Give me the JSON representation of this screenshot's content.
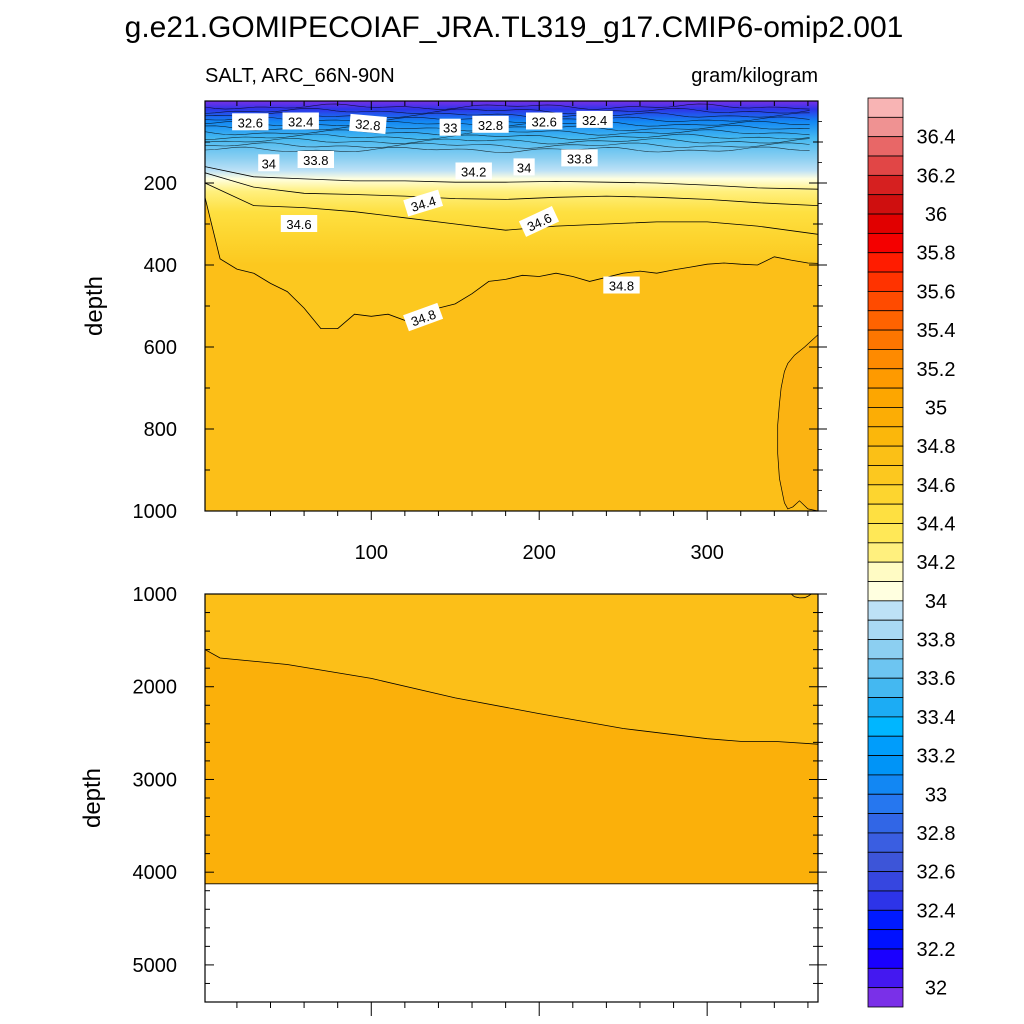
{
  "figure": {
    "title": "g.e21.GOMIPECOIAF_JRA.TL319_g17.CMIP6-omip2.001",
    "left_subtitle": "SALT, ARC_66N-90N",
    "right_subtitle": "gram/kilogram"
  },
  "chart_data": [
    {
      "type": "heatmap",
      "name": "upper-panel",
      "variable": "SALT",
      "region": "ARC_66N-90N",
      "units": "gram/kilogram",
      "ylabel": "depth",
      "xlabel": "",
      "xlim": [
        1,
        366
      ],
      "ylim": [
        0,
        1000
      ],
      "y_reversed": true,
      "xticks": [
        100,
        200,
        300
      ],
      "yticks": [
        200,
        400,
        600,
        800,
        1000
      ],
      "grid": false,
      "bands": [
        32,
        32.2,
        32.4,
        32.6,
        32.8,
        33,
        33.2,
        33.4,
        33.6,
        33.8,
        34,
        34.2,
        34.4,
        34.6,
        34.8
      ],
      "contour_labels": [
        {
          "label": "32.6",
          "x": 28,
          "depth": 52,
          "angle": 0
        },
        {
          "label": "32.4",
          "x": 58,
          "depth": 50,
          "angle": 0
        },
        {
          "label": "32.8",
          "x": 98,
          "depth": 57,
          "angle": 5
        },
        {
          "label": "33",
          "x": 147,
          "depth": 65,
          "angle": 0
        },
        {
          "label": "32.8",
          "x": 171,
          "depth": 58,
          "angle": 0
        },
        {
          "label": "32.6",
          "x": 203,
          "depth": 50,
          "angle": 0
        },
        {
          "label": "32.4",
          "x": 233,
          "depth": 46,
          "angle": 0
        },
        {
          "label": "34",
          "x": 39,
          "depth": 152,
          "angle": 0
        },
        {
          "label": "33.8",
          "x": 67,
          "depth": 144,
          "angle": 0
        },
        {
          "label": "34.2",
          "x": 161,
          "depth": 172,
          "angle": 0
        },
        {
          "label": "34",
          "x": 191,
          "depth": 162,
          "angle": 0
        },
        {
          "label": "33.8",
          "x": 224,
          "depth": 140,
          "angle": 0
        },
        {
          "label": "34.4",
          "x": 131,
          "depth": 250,
          "angle": -17
        },
        {
          "label": "34.6",
          "x": 57,
          "depth": 300,
          "angle": 0
        },
        {
          "label": "34.6",
          "x": 200,
          "depth": 295,
          "angle": -25
        },
        {
          "label": "34.8",
          "x": 131,
          "depth": 528,
          "angle": -20
        },
        {
          "label": "34.8",
          "x": 249,
          "depth": 450,
          "angle": 0
        }
      ],
      "isolines": {
        "34.8": {
          "x": [
            1,
            10,
            20,
            30,
            40,
            50,
            60,
            70,
            80,
            90,
            100,
            110,
            120,
            130,
            140,
            150,
            160,
            170,
            180,
            190,
            200,
            210,
            220,
            230,
            240,
            250,
            260,
            270,
            280,
            290,
            300,
            310,
            320,
            330,
            340,
            350,
            360,
            366
          ],
          "depth": [
            235,
            385,
            410,
            420,
            445,
            465,
            505,
            555,
            555,
            520,
            525,
            520,
            535,
            520,
            505,
            495,
            470,
            440,
            435,
            425,
            428,
            420,
            428,
            440,
            430,
            420,
            415,
            420,
            412,
            405,
            398,
            395,
            398,
            400,
            380,
            388,
            395,
            396
          ]
        },
        "34.6": {
          "x": [
            1,
            30,
            60,
            90,
            120,
            150,
            180,
            210,
            240,
            270,
            300,
            330,
            366
          ],
          "depth": [
            200,
            255,
            260,
            270,
            285,
            300,
            315,
            305,
            300,
            295,
            295,
            305,
            325
          ]
        },
        "34.4": {
          "x": [
            1,
            30,
            60,
            90,
            120,
            150,
            180,
            210,
            240,
            270,
            300,
            330,
            366
          ],
          "depth": [
            175,
            210,
            225,
            228,
            232,
            238,
            240,
            235,
            232,
            235,
            240,
            248,
            255
          ]
        },
        "34.2": {
          "x": [
            1,
            30,
            60,
            90,
            120,
            150,
            180,
            210,
            240,
            270,
            300,
            330,
            366
          ],
          "depth": [
            160,
            185,
            190,
            195,
            195,
            198,
            198,
            196,
            198,
            200,
            205,
            212,
            215
          ]
        }
      }
    },
    {
      "type": "heatmap",
      "name": "lower-panel",
      "ylabel": "depth",
      "xlim": [
        1,
        366
      ],
      "ylim": [
        1000,
        5400
      ],
      "y_reversed": true,
      "yticks": [
        1000,
        2000,
        3000,
        4000,
        5000
      ],
      "grid": false,
      "bottom_depth": 4125,
      "fills": [
        {
          "level": "34.8-35",
          "region": "above isoline"
        },
        {
          "level": "35-35.2",
          "region": "below isoline"
        }
      ],
      "isoline_35": {
        "x": [
          1,
          10,
          50,
          100,
          150,
          200,
          250,
          300,
          320,
          340,
          366
        ],
        "depth": [
          1600,
          1690,
          1760,
          1910,
          2120,
          2290,
          2450,
          2560,
          2590,
          2590,
          2620
        ]
      }
    }
  ],
  "colorbar": {
    "min": 31.9,
    "max": 36.6,
    "levels": [
      36.6,
      36.5,
      36.4,
      36.3,
      36.2,
      36.1,
      36,
      35.9,
      35.8,
      35.7,
      35.6,
      35.5,
      35.4,
      35.3,
      35.2,
      35.1,
      35,
      34.9,
      34.8,
      34.7,
      34.6,
      34.5,
      34.4,
      34.3,
      34.2,
      34.1,
      34,
      33.9,
      33.8,
      33.7,
      33.6,
      33.5,
      33.4,
      33.3,
      33.2,
      33.1,
      33,
      32.9,
      32.8,
      32.7,
      32.6,
      32.5,
      32.4,
      32.3,
      32.2,
      32.1,
      32,
      31.9
    ],
    "colors": [
      "#f8b4b4",
      "#ef9292",
      "#e86767",
      "#e14646",
      "#d62020",
      "#cf0f0f",
      "#e10000",
      "#f40000",
      "#ff1c00",
      "#ff3300",
      "#ff4b00",
      "#ff6300",
      "#fd7600",
      "#fe8a00",
      "#fe9a00",
      "#fda600",
      "#fcad05",
      "#fbb70b",
      "#fbc016",
      "#fcc81f",
      "#fdd52f",
      "#fee041",
      "#ffe857",
      "#fff07e",
      "#fffbc4",
      "#ffffe0",
      "#bde1f6",
      "#a9d9f4",
      "#8ccff1",
      "#6dc5f1",
      "#44b8f1",
      "#1cacf4",
      "#00b6ff",
      "#009dfb",
      "#0094f7",
      "#1287f3",
      "#2677ef",
      "#3166e6",
      "#3a5ee1",
      "#3d55d8",
      "#3646e0",
      "#2d34e8",
      "#001aff",
      "#0011ff",
      "#1a00ff",
      "#4418f0",
      "#7a30e8"
    ],
    "label_values": [
      "36.4",
      "36.2",
      "36",
      "35.8",
      "35.6",
      "35.4",
      "35.2",
      "35",
      "34.8",
      "34.6",
      "34.4",
      "34.2",
      "34",
      "33.8",
      "33.6",
      "33.4",
      "33.2",
      "33",
      "32.8",
      "32.6",
      "32.4",
      "32.2",
      "32"
    ]
  }
}
